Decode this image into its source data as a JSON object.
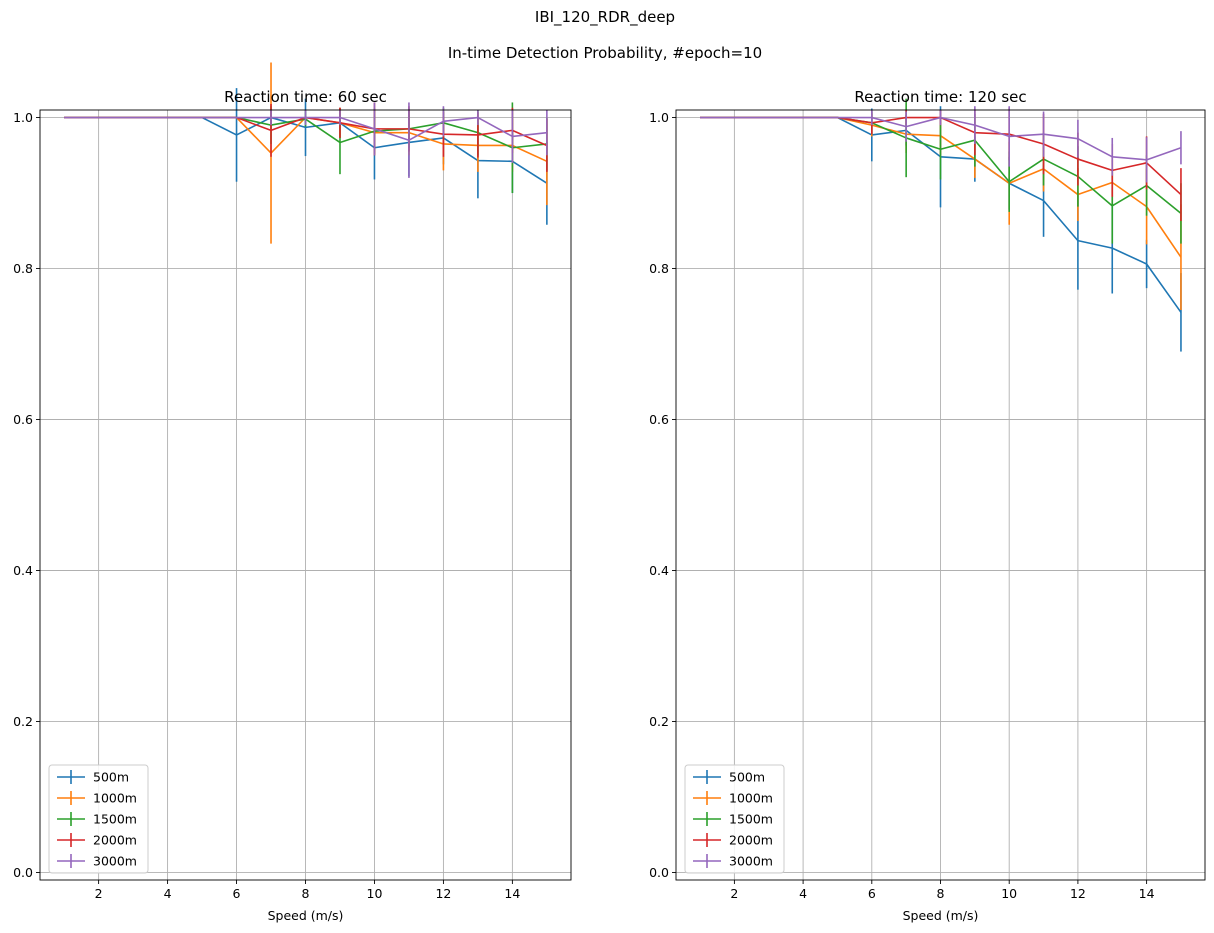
{
  "figure": {
    "suptitle": "IBI_120_RDR_deep",
    "subtitle": "In-time Detection Probability, #epoch=10"
  },
  "colors": {
    "500m": "#1f77b4",
    "1000m": "#ff7f0e",
    "1500m": "#2ca02c",
    "2000m": "#d62728",
    "3000m": "#9467bd",
    "grid": "#b0b0b0"
  },
  "chart_data": [
    {
      "type": "line",
      "error_bars": true,
      "title": "Reaction time: 60 sec",
      "xlabel": "Speed (m/s)",
      "ylabel": "",
      "xlim": [
        0.3,
        15.7
      ],
      "ylim": [
        -0.01,
        1.01
      ],
      "xticks": [
        2,
        4,
        6,
        8,
        10,
        12,
        14
      ],
      "yticks": [
        0.0,
        0.2,
        0.4,
        0.6,
        0.8,
        1.0
      ],
      "ytick_labels": [
        "0.0",
        "0.2",
        "0.4",
        "0.6",
        "0.8",
        "1.0"
      ],
      "grid": true,
      "legend_position": "lower-left",
      "x": [
        1,
        2,
        3,
        4,
        5,
        6,
        7,
        8,
        9,
        10,
        11,
        12,
        13,
        14,
        15
      ],
      "series": [
        {
          "name": "500m",
          "values": [
            1.0,
            1.0,
            1.0,
            1.0,
            1.0,
            0.977,
            1.0,
            0.987,
            0.993,
            0.96,
            0.967,
            0.973,
            0.943,
            0.942,
            0.913
          ],
          "errors": [
            0,
            0,
            0,
            0,
            0,
            0.062,
            0,
            0.038,
            0.02,
            0.042,
            0.045,
            0.035,
            0.05,
            0.042,
            0.055
          ]
        },
        {
          "name": "1000m",
          "values": [
            1.0,
            1.0,
            1.0,
            1.0,
            1.0,
            1.0,
            0.953,
            1.0,
            0.993,
            0.98,
            0.98,
            0.965,
            0.963,
            0.963,
            0.942
          ],
          "errors": [
            0,
            0,
            0,
            0,
            0,
            0,
            0.12,
            0,
            0.02,
            0.03,
            0.03,
            0.035,
            0.035,
            0.035,
            0.058
          ]
        },
        {
          "name": "1500m",
          "values": [
            1.0,
            1.0,
            1.0,
            1.0,
            1.0,
            1.0,
            0.99,
            0.998,
            0.967,
            0.982,
            0.985,
            0.993,
            0.98,
            0.96,
            0.965
          ],
          "errors": [
            0,
            0,
            0,
            0,
            0,
            0,
            0.025,
            0.01,
            0.042,
            0.03,
            0.025,
            0.02,
            0.03,
            0.06,
            0.035
          ]
        },
        {
          "name": "2000m",
          "values": [
            1.0,
            1.0,
            1.0,
            1.0,
            1.0,
            1.0,
            0.983,
            1.0,
            0.993,
            0.985,
            0.985,
            0.978,
            0.977,
            0.983,
            0.963
          ],
          "errors": [
            0,
            0,
            0,
            0,
            0,
            0,
            0.035,
            0,
            0.02,
            0.035,
            0.03,
            0.03,
            0.03,
            0.03,
            0.035
          ]
        },
        {
          "name": "3000m",
          "values": [
            1.0,
            1.0,
            1.0,
            1.0,
            1.0,
            1.0,
            1.0,
            1.0,
            1.0,
            0.985,
            0.97,
            0.995,
            1.0,
            0.975,
            0.98
          ],
          "errors": [
            0,
            0,
            0,
            0,
            0,
            0,
            0.01,
            0.01,
            0.01,
            0.035,
            0.05,
            0.02,
            0.01,
            0.035,
            0.03
          ]
        }
      ]
    },
    {
      "type": "line",
      "error_bars": true,
      "title": "Reaction time: 120 sec",
      "xlabel": "Speed (m/s)",
      "ylabel": "",
      "xlim": [
        0.3,
        15.7
      ],
      "ylim": [
        -0.01,
        1.01
      ],
      "xticks": [
        2,
        4,
        6,
        8,
        10,
        12,
        14
      ],
      "yticks": [
        0.0,
        0.2,
        0.4,
        0.6,
        0.8,
        1.0
      ],
      "ytick_labels": [
        "0.0",
        "0.2",
        "0.4",
        "0.6",
        "0.8",
        "1.0"
      ],
      "grid": true,
      "legend_position": "lower-left",
      "x": [
        1,
        2,
        3,
        4,
        5,
        6,
        7,
        8,
        9,
        10,
        11,
        12,
        13,
        14,
        15
      ],
      "series": [
        {
          "name": "500m",
          "values": [
            1.0,
            1.0,
            1.0,
            1.0,
            1.0,
            0.977,
            0.983,
            0.948,
            0.945,
            0.913,
            0.89,
            0.837,
            0.827,
            0.806,
            0.742
          ],
          "errors": [
            0,
            0,
            0,
            0,
            0,
            0.035,
            0.02,
            0.067,
            0.03,
            0.035,
            0.048,
            0.065,
            0.06,
            0.032,
            0.052
          ]
        },
        {
          "name": "1000m",
          "values": [
            1.0,
            1.0,
            1.0,
            1.0,
            1.0,
            0.99,
            0.978,
            0.976,
            0.945,
            0.913,
            0.932,
            0.898,
            0.914,
            0.882,
            0.815
          ],
          "errors": [
            0,
            0,
            0,
            0,
            0,
            0.015,
            0.025,
            0.025,
            0.025,
            0.055,
            0.03,
            0.035,
            0.03,
            0.05,
            0.07
          ]
        },
        {
          "name": "1500m",
          "values": [
            1.0,
            1.0,
            1.0,
            1.0,
            1.0,
            0.993,
            0.973,
            0.958,
            0.97,
            0.915,
            0.945,
            0.922,
            0.883,
            0.91,
            0.873
          ],
          "errors": [
            0,
            0,
            0,
            0,
            0,
            0.015,
            0.052,
            0.04,
            0.035,
            0.04,
            0.035,
            0.04,
            0.05,
            0.04,
            0.04
          ]
        },
        {
          "name": "2000m",
          "values": [
            1.0,
            1.0,
            1.0,
            1.0,
            1.0,
            0.993,
            1.0,
            1.0,
            0.98,
            0.978,
            0.965,
            0.945,
            0.93,
            0.94,
            0.898
          ],
          "errors": [
            0,
            0,
            0,
            0,
            0,
            0.015,
            0.01,
            0.01,
            0.03,
            0.035,
            0.04,
            0.035,
            0.035,
            0.035,
            0.035
          ]
        },
        {
          "name": "3000m",
          "values": [
            1.0,
            1.0,
            1.0,
            1.0,
            1.0,
            1.0,
            0.988,
            1.0,
            0.99,
            0.975,
            0.978,
            0.972,
            0.948,
            0.944,
            0.96
          ],
          "errors": [
            0,
            0,
            0,
            0,
            0,
            0.01,
            0.02,
            0.01,
            0.025,
            0.04,
            0.03,
            0.025,
            0.025,
            0.03,
            0.022
          ]
        }
      ]
    }
  ]
}
